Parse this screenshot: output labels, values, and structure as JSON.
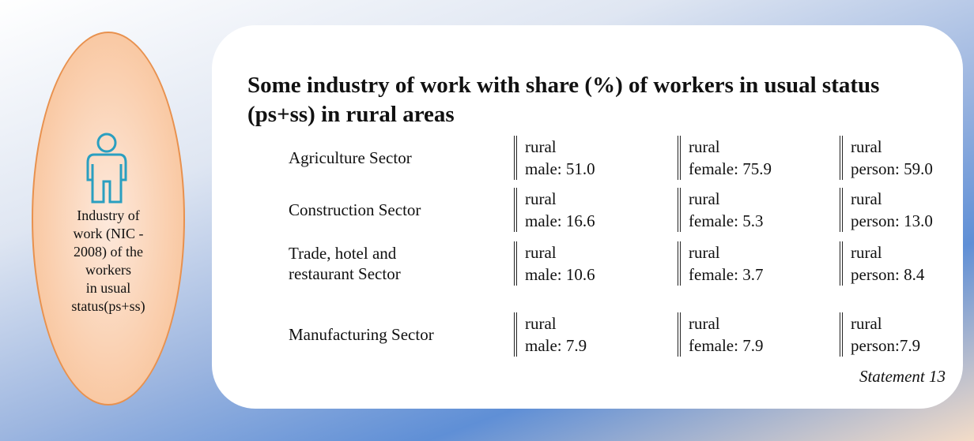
{
  "sidebar": {
    "label_lines": [
      "Industry of",
      "work (NIC -",
      "2008) of the",
      "workers",
      "in usual",
      "status(ps+ss)"
    ]
  },
  "title_lines": [
    "Some industry of work with share (%) of workers in usual status",
    "(ps+ss) in rural areas"
  ],
  "rows": [
    {
      "sector_lines": [
        "Agriculture Sector"
      ],
      "cells": [
        [
          "rural",
          "male: 51.0"
        ],
        [
          "rural",
          "female: 75.9"
        ],
        [
          "rural",
          "person: 59.0"
        ]
      ]
    },
    {
      "sector_lines": [
        "Construction Sector"
      ],
      "cells": [
        [
          "rural",
          "male: 16.6"
        ],
        [
          "rural",
          "female: 5.3"
        ],
        [
          "rural",
          "person: 13.0"
        ]
      ]
    },
    {
      "sector_lines": [
        "Trade, hotel and",
        "restaurant Sector"
      ],
      "cells": [
        [
          "rural",
          "male: 10.6"
        ],
        [
          "rural",
          "female: 3.7"
        ],
        [
          "rural",
          "person: 8.4"
        ]
      ]
    },
    {
      "sector_lines": [
        "Manufacturing Sector"
      ],
      "cells": [
        [
          "rural",
          "male: 7.9"
        ],
        [
          "rural",
          "female: 7.9"
        ],
        [
          "rural",
          "person:7.9"
        ]
      ]
    }
  ],
  "footer": "Statement 13"
}
